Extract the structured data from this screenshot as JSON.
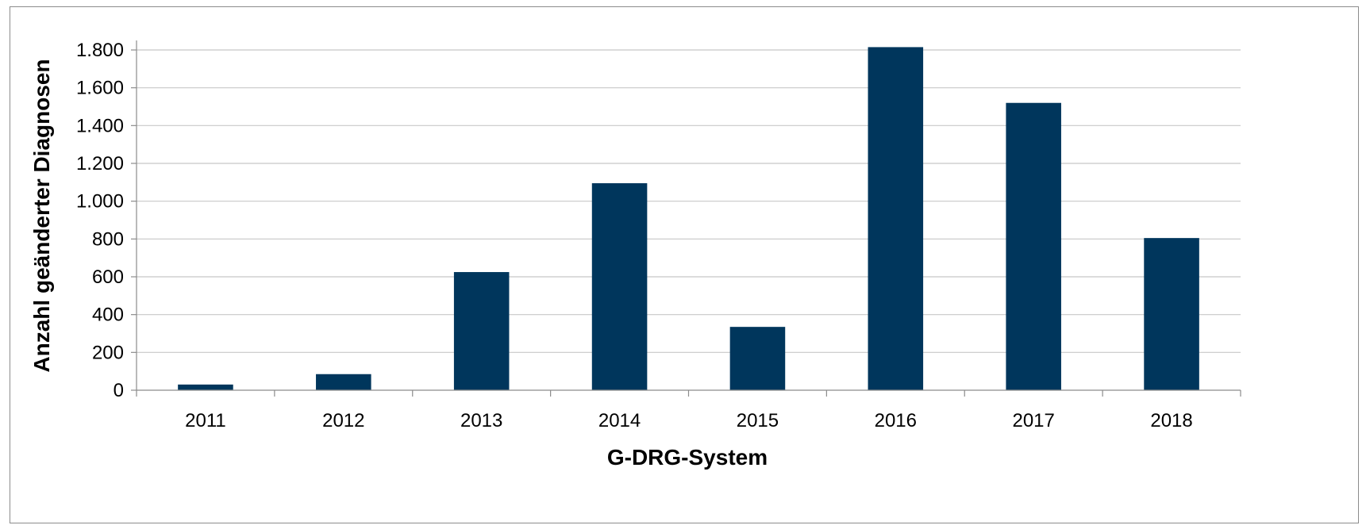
{
  "chart_data": {
    "type": "bar",
    "categories": [
      "2011",
      "2012",
      "2013",
      "2014",
      "2015",
      "2016",
      "2017",
      "2018"
    ],
    "values": [
      30,
      85,
      625,
      1095,
      335,
      1815,
      1520,
      805
    ],
    "xlabel": "G-DRG-System",
    "ylabel": "Anzahl geänderter Diagnosen",
    "ylim": [
      0,
      1800
    ],
    "yticks": [
      0,
      200,
      400,
      600,
      800,
      1000,
      1200,
      1400,
      1600,
      1800
    ],
    "ytick_labels": [
      "0",
      "200",
      "400",
      "600",
      "800",
      "1.000",
      "1.200",
      "1.400",
      "1.600",
      "1.800"
    ],
    "grid": true,
    "bar_color": "#00365c",
    "grid_color": "#c8c8c8"
  }
}
